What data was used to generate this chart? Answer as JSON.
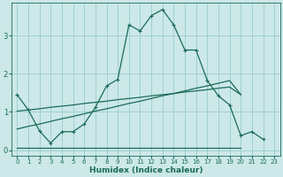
{
  "xlabel": "Humidex (Indice chaleur)",
  "background_color": "#cce8e8",
  "grid_color": "#99cccc",
  "line_color": "#1a6b5a",
  "xlim": [
    -0.5,
    23.5
  ],
  "ylim": [
    -0.15,
    3.85
  ],
  "yticks": [
    0,
    1,
    2,
    3
  ],
  "xticks": [
    0,
    1,
    2,
    3,
    4,
    5,
    6,
    7,
    8,
    9,
    10,
    11,
    12,
    13,
    14,
    15,
    16,
    17,
    18,
    19,
    20,
    21,
    22,
    23
  ],
  "curve1_x": [
    0,
    1,
    2,
    3,
    4,
    5,
    6,
    7,
    8,
    9,
    10,
    11,
    12,
    13,
    14,
    15,
    16,
    17,
    18,
    19,
    20,
    21,
    22
  ],
  "curve1_y": [
    1.45,
    1.05,
    0.5,
    0.18,
    0.48,
    0.48,
    0.68,
    1.12,
    1.68,
    1.85,
    3.28,
    3.12,
    3.52,
    3.68,
    3.28,
    2.62,
    2.62,
    1.82,
    1.42,
    1.18,
    0.38,
    0.48,
    0.28
  ],
  "curve2_x": [
    0,
    1,
    2,
    3,
    4,
    5,
    6,
    7,
    8,
    9,
    10,
    11,
    12,
    13,
    14,
    15,
    16,
    17,
    18,
    19,
    20
  ],
  "curve2_y": [
    0.05,
    0.05,
    0.05,
    0.05,
    0.05,
    0.05,
    0.05,
    0.05,
    0.05,
    0.05,
    0.05,
    0.05,
    0.05,
    0.05,
    0.05,
    0.05,
    0.05,
    0.05,
    0.05,
    0.05,
    0.05
  ],
  "curve3_x": [
    0,
    1,
    2,
    3,
    4,
    5,
    6,
    7,
    8,
    9,
    10,
    11,
    12,
    13,
    14,
    15,
    16,
    17,
    18,
    19,
    20
  ],
  "curve3_y": [
    0.55,
    0.62,
    0.68,
    0.75,
    0.82,
    0.88,
    0.95,
    1.02,
    1.08,
    1.15,
    1.22,
    1.28,
    1.35,
    1.42,
    1.48,
    1.55,
    1.62,
    1.68,
    1.75,
    1.82,
    1.45
  ],
  "curve4_x": [
    0,
    1,
    2,
    3,
    4,
    5,
    6,
    7,
    8,
    9,
    10,
    11,
    12,
    13,
    14,
    15,
    16,
    17,
    18,
    19,
    20
  ],
  "curve4_y": [
    1.02,
    1.05,
    1.08,
    1.12,
    1.15,
    1.18,
    1.22,
    1.25,
    1.28,
    1.32,
    1.35,
    1.38,
    1.42,
    1.45,
    1.48,
    1.52,
    1.55,
    1.58,
    1.62,
    1.65,
    1.45
  ]
}
